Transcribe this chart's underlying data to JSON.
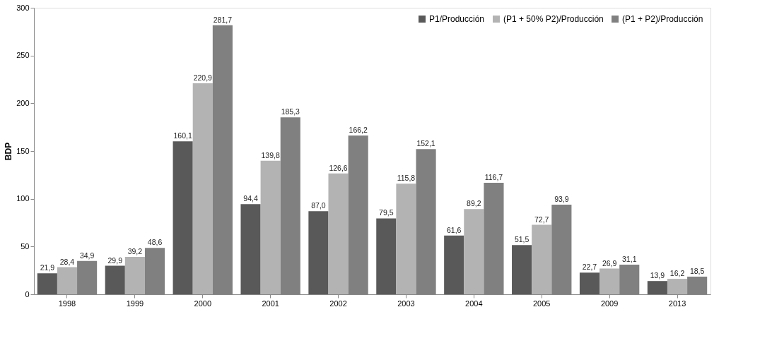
{
  "chart_data": {
    "type": "bar",
    "ylabel": "BDP",
    "categories": [
      "1998",
      "1999",
      "2000",
      "2001",
      "2002",
      "2003",
      "2004",
      "2005",
      "2009",
      "2013"
    ],
    "series": [
      {
        "name": "P1/Producción",
        "color": "#595959",
        "values": [
          21.9,
          29.9,
          160.1,
          94.4,
          87.0,
          79.5,
          61.6,
          51.5,
          22.7,
          13.9
        ],
        "value_labels": [
          "21,9",
          "29,9",
          "160,1",
          "94,4",
          "87,0",
          "79,5",
          "61,6",
          "51,5",
          "22,7",
          "13,9"
        ]
      },
      {
        "name": "(P1 + 50% P2)/Producción",
        "color": "#b3b3b3",
        "values": [
          28.4,
          39.2,
          220.9,
          139.8,
          126.6,
          115.8,
          89.2,
          72.7,
          26.9,
          16.2
        ],
        "value_labels": [
          "28,4",
          "39,2",
          "220,9",
          "139,8",
          "126,6",
          "115,8",
          "89,2",
          "72,7",
          "26,9",
          "16,2"
        ]
      },
      {
        "name": "(P1 + P2)/Producción",
        "color": "#808080",
        "values": [
          34.9,
          48.6,
          281.7,
          185.3,
          166.2,
          152.1,
          116.7,
          93.9,
          31.1,
          18.5
        ],
        "value_labels": [
          "34,9",
          "48,6",
          "281,7",
          "185,3",
          "166,2",
          "152,1",
          "116,7",
          "93,9",
          "31,1",
          "18,5"
        ]
      }
    ],
    "ylim": [
      0,
      300
    ],
    "yticks": [
      0,
      50,
      100,
      150,
      200,
      250,
      300
    ],
    "grid": false,
    "legend": "top right"
  }
}
